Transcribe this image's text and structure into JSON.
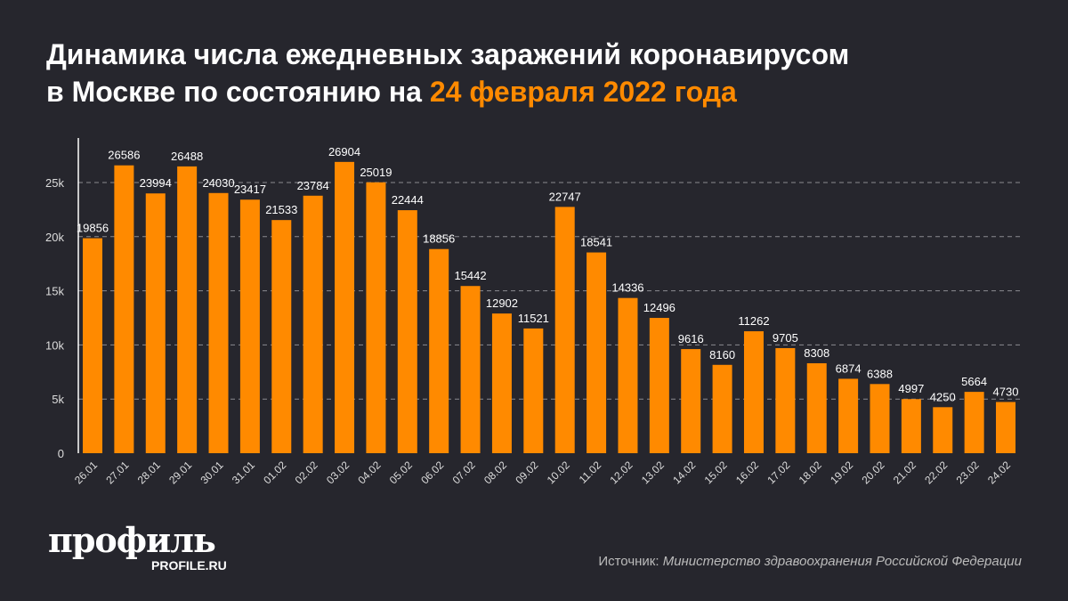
{
  "title": {
    "line1": "Динамика числа ежедневных заражений коронавирусом",
    "line2_prefix": "в Москве по состоянию на ",
    "line2_highlight": "24 февраля 2022 года"
  },
  "colors": {
    "background": "#26262d",
    "bar": "#ff8a00",
    "accent": "#ff8a00",
    "text": "#ffffff"
  },
  "chart_data": {
    "type": "bar",
    "categories": [
      "26.01",
      "27.01",
      "28.01",
      "29.01",
      "30.01",
      "31.01",
      "01.02",
      "02.02",
      "03.02",
      "04.02",
      "05.02",
      "06.02",
      "07.02",
      "08.02",
      "09.02",
      "10.02",
      "11.02",
      "12.02",
      "13.02",
      "14.02",
      "15.02",
      "16.02",
      "17.02",
      "18.02",
      "19.02",
      "20.02",
      "21.02",
      "22.02",
      "23.02",
      "24.02"
    ],
    "values": [
      19856,
      26586,
      23994,
      26488,
      24030,
      23417,
      21533,
      23784,
      26904,
      25019,
      22444,
      18856,
      15442,
      12902,
      11521,
      22747,
      18541,
      14336,
      12496,
      9616,
      8160,
      11262,
      9705,
      8308,
      6874,
      6388,
      4997,
      4250,
      5664,
      4730
    ],
    "yticks": [
      0,
      5000,
      10000,
      15000,
      20000,
      25000
    ],
    "ytick_labels": [
      "0",
      "5k",
      "10k",
      "15k",
      "20k",
      "25k"
    ],
    "ylim": [
      0,
      27500
    ],
    "grid": "dashed horizontal",
    "data_labels": true
  },
  "logo": {
    "name": "профиль",
    "site": "PROFILE.RU"
  },
  "source": {
    "label": "Источник: ",
    "value": "Министерство здравоохранения Российской Федерации"
  }
}
